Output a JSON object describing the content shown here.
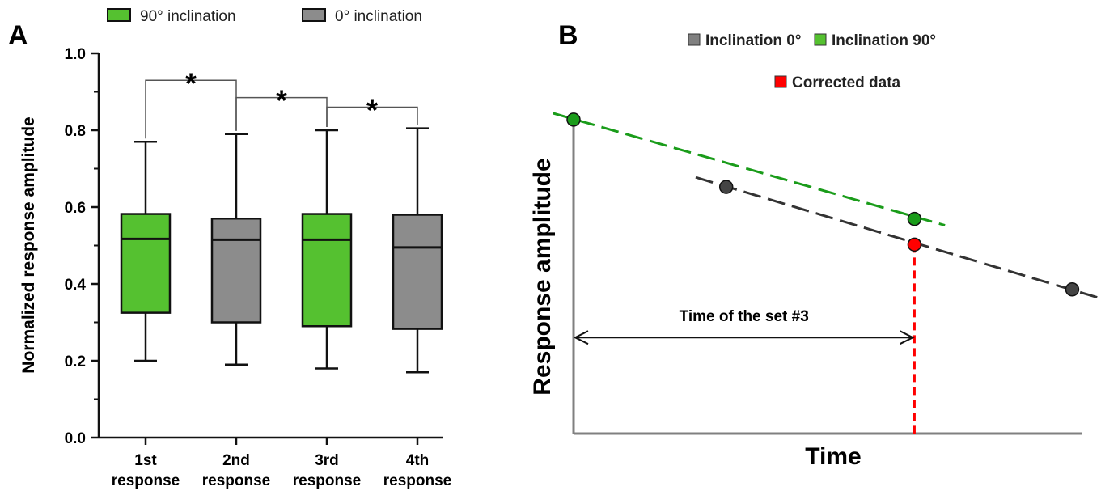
{
  "chart_data": [
    {
      "panel": "A",
      "type": "box",
      "categories": [
        [
          "1st",
          "response"
        ],
        [
          "2nd",
          "response"
        ],
        [
          "3rd",
          "response"
        ],
        [
          "4th",
          "response"
        ]
      ],
      "ylabel": "Normalized response amplitude",
      "ylim": [
        0.0,
        1.0
      ],
      "yticks": [
        "0.0",
        "0.2",
        "0.4",
        "0.6",
        "0.8",
        "1.0"
      ],
      "legend": [
        {
          "label": "90° inclination",
          "color": "#55c130"
        },
        {
          "label": "0° inclination",
          "color": "#8c8c8c"
        }
      ],
      "boxes": [
        {
          "min": 0.2,
          "q1": 0.325,
          "median": 0.517,
          "q3": 0.582,
          "max": 0.77,
          "group": 0
        },
        {
          "min": 0.19,
          "q1": 0.3,
          "median": 0.515,
          "q3": 0.57,
          "max": 0.79,
          "group": 1
        },
        {
          "min": 0.18,
          "q1": 0.29,
          "median": 0.515,
          "q3": 0.582,
          "max": 0.8,
          "group": 0
        },
        {
          "min": 0.17,
          "q1": 0.283,
          "median": 0.495,
          "q3": 0.58,
          "max": 0.805,
          "group": 1
        }
      ],
      "significance": [
        {
          "from": 0,
          "to": 1,
          "label": "*",
          "y": 0.93
        },
        {
          "from": 1,
          "to": 2,
          "label": "*",
          "y": 0.885
        },
        {
          "from": 2,
          "to": 3,
          "label": "*",
          "y": 0.86
        }
      ],
      "grid": false
    },
    {
      "panel": "B",
      "type": "line",
      "xlabel": "Time",
      "ylabel": "Response amplitude",
      "xlim": [
        0,
        100
      ],
      "ylim": [
        0,
        100
      ],
      "legend": [
        {
          "label": "Inclination 0°",
          "color": "#808080"
        },
        {
          "label": "Inclination 90°",
          "color": "#55c130"
        },
        {
          "label": "Corrected data",
          "color": "#ff0000"
        }
      ],
      "series": [
        {
          "line": [
            [
              -4,
              100
            ],
            [
              73,
              65
            ]
          ],
          "color": "#1a9c1a",
          "points": [
            [
              0,
              98
            ],
            [
              67,
              67
            ]
          ],
          "point_color": "#1a9c1a"
        },
        {
          "line": [
            [
              24,
              80
            ],
            [
              104,
              42
            ]
          ],
          "color": "#333333",
          "points": [
            [
              30,
              77
            ],
            [
              98,
              45
            ]
          ],
          "point_color": "#444444"
        }
      ],
      "corrected_point": [
        67,
        59
      ],
      "time_marker_x": 67,
      "annotation": {
        "text": "Time of the set #3",
        "arrow_y": 30,
        "from_x": 0,
        "to_x": 67
      },
      "grid": false
    }
  ],
  "panels": {
    "a_label": "A",
    "b_label": "B"
  }
}
